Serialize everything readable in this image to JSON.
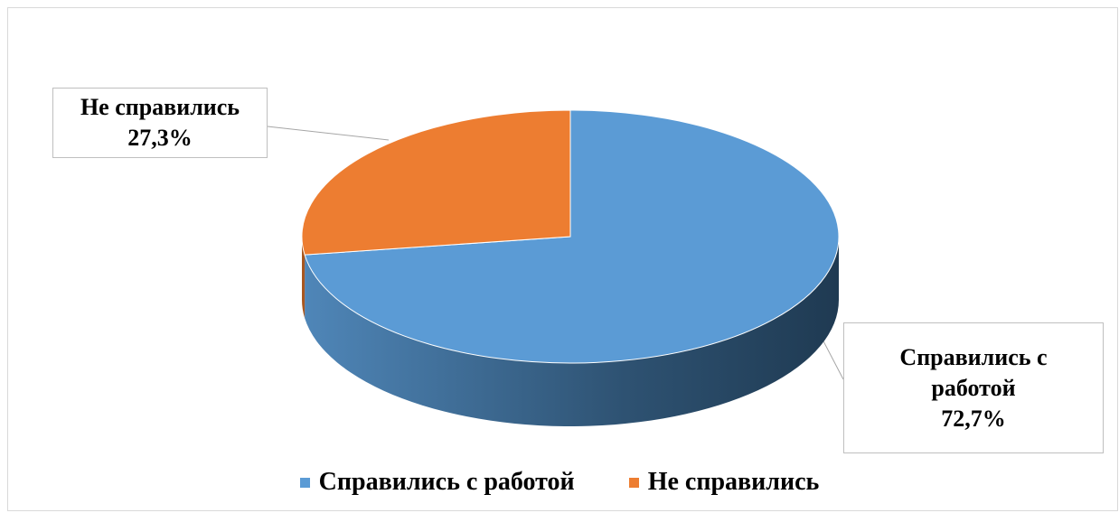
{
  "chart_data": {
    "type": "pie",
    "categories": [
      "Справились с работой",
      "Не справились"
    ],
    "values": [
      72.7,
      27.3
    ],
    "value_labels": [
      "72,7%",
      "27,3%"
    ],
    "colors": [
      "#5b9bd5",
      "#ed7d31"
    ],
    "legend": "bottom"
  }
}
